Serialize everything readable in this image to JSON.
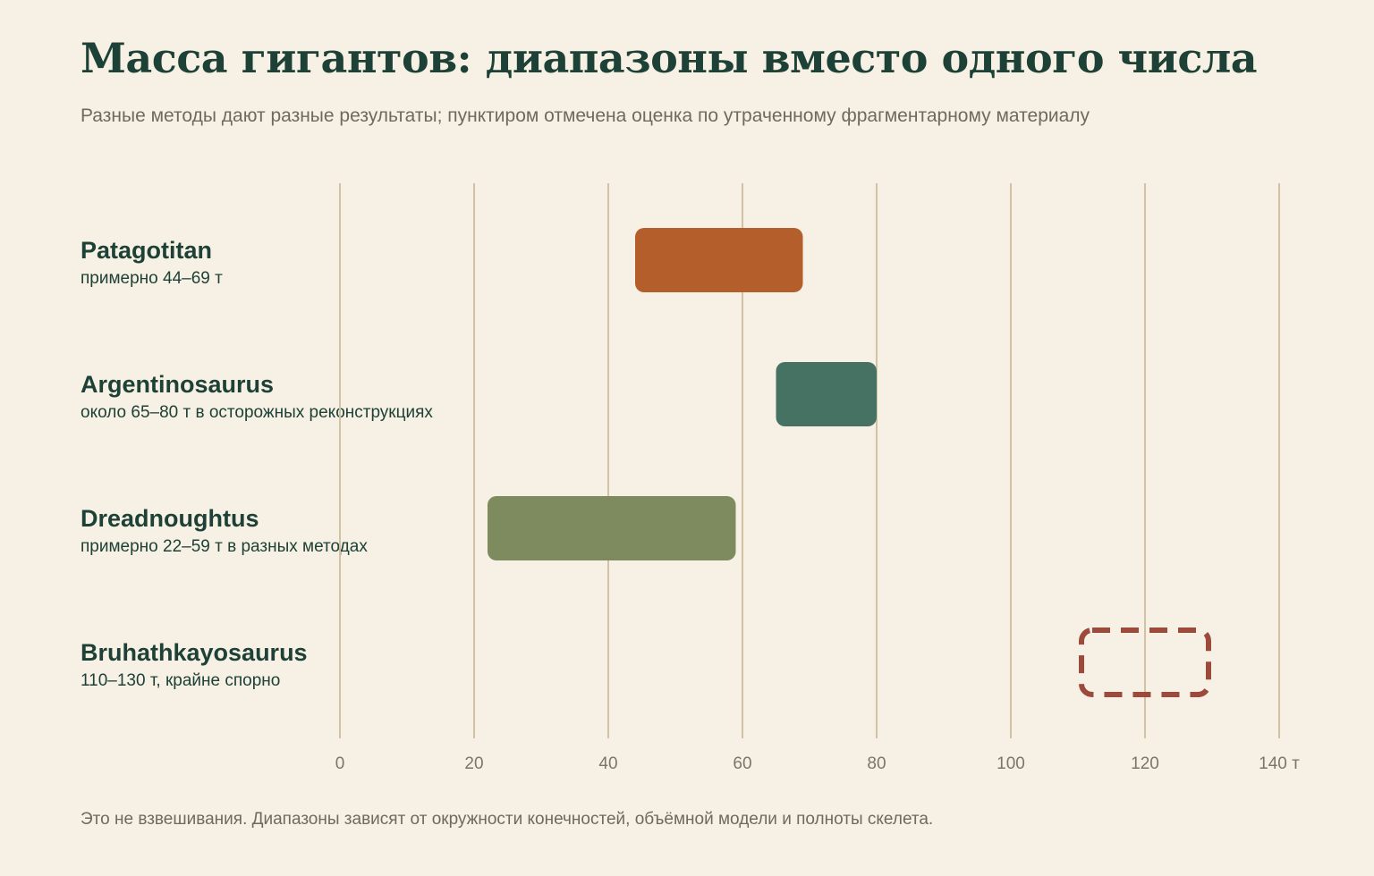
{
  "title": "Масса гигантов: диапазоны вместо одного числа",
  "subtitle": "Разные методы дают разные результаты; пунктиром отмечена оценка по утраченному фрагментарному материалу",
  "footnote": "Это не взвешивания. Диапазоны зависят от окружности конечностей, объёмной модели и полноты скелета.",
  "chart_data": {
    "type": "bar",
    "orientation": "horizontal-range",
    "xlim": [
      0,
      140
    ],
    "x_ticks": [
      {
        "value": 0,
        "label": "0"
      },
      {
        "value": 20,
        "label": "20"
      },
      {
        "value": 40,
        "label": "40"
      },
      {
        "value": 60,
        "label": "60"
      },
      {
        "value": 80,
        "label": "80"
      },
      {
        "value": 100,
        "label": "100"
      },
      {
        "value": 120,
        "label": "120"
      },
      {
        "value": 140,
        "label": "140 т"
      }
    ],
    "grid": true,
    "series": [
      {
        "name": "Patagotitan",
        "note": "примерно 44–69 т",
        "low": 44,
        "high": 69,
        "color": "#b45e2b",
        "style": "solid"
      },
      {
        "name": "Argentinosaurus",
        "note": "около 65–80 т в осторожных реконструкциях",
        "low": 65,
        "high": 80,
        "color": "#467264",
        "style": "solid"
      },
      {
        "name": "Dreadnoughtus",
        "note": "примерно 22–59 т в разных методах",
        "low": 22,
        "high": 59,
        "color": "#7d8b5e",
        "style": "solid"
      },
      {
        "name": "Bruhathkayosaurus",
        "note": "110–130 т, крайне спорно",
        "low": 110,
        "high": 130,
        "color": "#9c4a3c",
        "style": "dashed"
      }
    ]
  }
}
